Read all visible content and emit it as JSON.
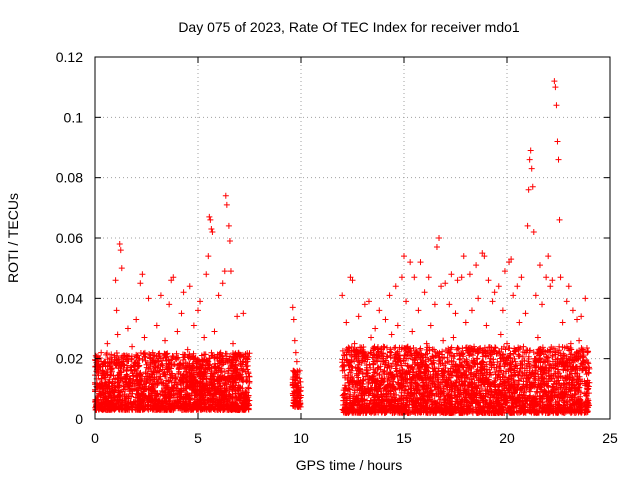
{
  "chart_data": {
    "type": "scatter",
    "title": "Day 075 of 2023, Rate Of TEC Index for receiver mdo1",
    "xlabel": "GPS time / hours",
    "ylabel": "ROTI / TECUs",
    "xlim": [
      0,
      25
    ],
    "ylim": [
      0,
      0.12
    ],
    "xticks": [
      0,
      5,
      10,
      15,
      20,
      25
    ],
    "xtick_labels": [
      "0",
      "5",
      "10",
      "15",
      "20",
      "25"
    ],
    "yticks": [
      0,
      0.02,
      0.04,
      0.06,
      0.08,
      0.1,
      0.12
    ],
    "ytick_labels": [
      "0",
      "0.02",
      "0.04",
      "0.06",
      "0.08",
      "0.1",
      "0.12"
    ],
    "grid": true,
    "marker": "+",
    "color": "#ff0000",
    "series": [
      {
        "name": "ROTI",
        "points": [
          [
            0.0,
            0.012
          ],
          [
            0.1,
            0.018
          ],
          [
            0.2,
            0.008
          ],
          [
            0.3,
            0.022
          ],
          [
            0.4,
            0.015
          ],
          [
            0.5,
            0.01
          ],
          [
            0.6,
            0.025
          ],
          [
            0.7,
            0.013
          ],
          [
            0.8,
            0.019
          ],
          [
            0.9,
            0.009
          ],
          [
            1.0,
            0.046
          ],
          [
            1.05,
            0.036
          ],
          [
            1.1,
            0.028
          ],
          [
            1.2,
            0.058
          ],
          [
            1.25,
            0.056
          ],
          [
            1.3,
            0.05
          ],
          [
            1.4,
            0.021
          ],
          [
            1.5,
            0.014
          ],
          [
            1.6,
            0.03
          ],
          [
            1.7,
            0.011
          ],
          [
            1.8,
            0.024
          ],
          [
            1.9,
            0.016
          ],
          [
            2.0,
            0.033
          ],
          [
            2.1,
            0.012
          ],
          [
            2.2,
            0.045
          ],
          [
            2.3,
            0.048
          ],
          [
            2.4,
            0.027
          ],
          [
            2.5,
            0.018
          ],
          [
            2.6,
            0.04
          ],
          [
            2.7,
            0.013
          ],
          [
            2.8,
            0.022
          ],
          [
            2.9,
            0.009
          ],
          [
            3.0,
            0.031
          ],
          [
            3.1,
            0.019
          ],
          [
            3.2,
            0.041
          ],
          [
            3.3,
            0.015
          ],
          [
            3.4,
            0.026
          ],
          [
            3.5,
            0.011
          ],
          [
            3.6,
            0.038
          ],
          [
            3.7,
            0.046
          ],
          [
            3.8,
            0.047
          ],
          [
            3.9,
            0.02
          ],
          [
            4.0,
            0.029
          ],
          [
            4.1,
            0.013
          ],
          [
            4.2,
            0.035
          ],
          [
            4.3,
            0.042
          ],
          [
            4.4,
            0.017
          ],
          [
            4.5,
            0.023
          ],
          [
            4.6,
            0.044
          ],
          [
            4.7,
            0.012
          ],
          [
            4.8,
            0.031
          ],
          [
            4.9,
            0.019
          ],
          [
            5.0,
            0.036
          ],
          [
            5.1,
            0.039
          ],
          [
            5.2,
            0.014
          ],
          [
            5.3,
            0.027
          ],
          [
            5.4,
            0.048
          ],
          [
            5.5,
            0.054
          ],
          [
            5.55,
            0.067
          ],
          [
            5.6,
            0.066
          ],
          [
            5.65,
            0.063
          ],
          [
            5.7,
            0.062
          ],
          [
            5.8,
            0.029
          ],
          [
            5.9,
            0.016
          ],
          [
            6.0,
            0.041
          ],
          [
            6.1,
            0.022
          ],
          [
            6.2,
            0.045
          ],
          [
            6.3,
            0.049
          ],
          [
            6.35,
            0.074
          ],
          [
            6.4,
            0.071
          ],
          [
            6.5,
            0.064
          ],
          [
            6.55,
            0.059
          ],
          [
            6.6,
            0.049
          ],
          [
            6.7,
            0.025
          ],
          [
            6.8,
            0.018
          ],
          [
            6.9,
            0.034
          ],
          [
            7.0,
            0.013
          ],
          [
            7.1,
            0.021
          ],
          [
            7.2,
            0.035
          ],
          [
            7.3,
            0.009
          ],
          [
            7.4,
            0.019
          ],
          [
            7.5,
            0.014
          ],
          [
            9.6,
            0.037
          ],
          [
            9.65,
            0.033
          ],
          [
            9.7,
            0.026
          ],
          [
            9.75,
            0.022
          ],
          [
            9.8,
            0.019
          ],
          [
            9.85,
            0.012
          ],
          [
            9.9,
            0.008
          ],
          [
            9.95,
            0.006
          ],
          [
            12.0,
            0.041
          ],
          [
            12.1,
            0.018
          ],
          [
            12.2,
            0.032
          ],
          [
            12.3,
            0.012
          ],
          [
            12.4,
            0.047
          ],
          [
            12.5,
            0.046
          ],
          [
            12.6,
            0.025
          ],
          [
            12.7,
            0.015
          ],
          [
            12.8,
            0.034
          ],
          [
            12.9,
            0.011
          ],
          [
            13.0,
            0.022
          ],
          [
            13.1,
            0.038
          ],
          [
            13.2,
            0.016
          ],
          [
            13.3,
            0.039
          ],
          [
            13.4,
            0.027
          ],
          [
            13.5,
            0.013
          ],
          [
            13.6,
            0.03
          ],
          [
            13.7,
            0.019
          ],
          [
            13.8,
            0.036
          ],
          [
            13.9,
            0.012
          ],
          [
            14.0,
            0.024
          ],
          [
            14.1,
            0.033
          ],
          [
            14.2,
            0.017
          ],
          [
            14.3,
            0.041
          ],
          [
            14.4,
            0.028
          ],
          [
            14.5,
            0.014
          ],
          [
            14.6,
            0.044
          ],
          [
            14.7,
            0.031
          ],
          [
            14.8,
            0.021
          ],
          [
            14.9,
            0.047
          ],
          [
            15.0,
            0.054
          ],
          [
            15.1,
            0.039
          ],
          [
            15.2,
            0.016
          ],
          [
            15.3,
            0.052
          ],
          [
            15.4,
            0.029
          ],
          [
            15.5,
            0.047
          ],
          [
            15.6,
            0.022
          ],
          [
            15.7,
            0.036
          ],
          [
            15.8,
            0.052
          ],
          [
            15.9,
            0.018
          ],
          [
            16.0,
            0.042
          ],
          [
            16.1,
            0.025
          ],
          [
            16.2,
            0.047
          ],
          [
            16.3,
            0.031
          ],
          [
            16.4,
            0.014
          ],
          [
            16.5,
            0.038
          ],
          [
            16.6,
            0.057
          ],
          [
            16.7,
            0.06
          ],
          [
            16.8,
            0.044
          ],
          [
            16.9,
            0.026
          ],
          [
            17.0,
            0.045
          ],
          [
            17.1,
            0.019
          ],
          [
            17.2,
            0.038
          ],
          [
            17.3,
            0.048
          ],
          [
            17.4,
            0.027
          ],
          [
            17.5,
            0.035
          ],
          [
            17.6,
            0.046
          ],
          [
            17.7,
            0.021
          ],
          [
            17.8,
            0.047
          ],
          [
            17.9,
            0.054
          ],
          [
            18.0,
            0.032
          ],
          [
            18.1,
            0.018
          ],
          [
            18.2,
            0.048
          ],
          [
            18.3,
            0.036
          ],
          [
            18.4,
            0.024
          ],
          [
            18.5,
            0.051
          ],
          [
            18.6,
            0.04
          ],
          [
            18.7,
            0.015
          ],
          [
            18.8,
            0.055
          ],
          [
            18.9,
            0.054
          ],
          [
            19.0,
            0.031
          ],
          [
            19.1,
            0.046
          ],
          [
            19.2,
            0.022
          ],
          [
            19.3,
            0.039
          ],
          [
            19.4,
            0.042
          ],
          [
            19.5,
            0.017
          ],
          [
            19.6,
            0.044
          ],
          [
            19.7,
            0.028
          ],
          [
            19.8,
            0.036
          ],
          [
            19.9,
            0.049
          ],
          [
            20.0,
            0.025
          ],
          [
            20.1,
            0.052
          ],
          [
            20.2,
            0.053
          ],
          [
            20.3,
            0.041
          ],
          [
            20.4,
            0.019
          ],
          [
            20.5,
            0.044
          ],
          [
            20.6,
            0.032
          ],
          [
            20.7,
            0.047
          ],
          [
            20.8,
            0.024
          ],
          [
            20.9,
            0.035
          ],
          [
            21.0,
            0.064
          ],
          [
            21.05,
            0.076
          ],
          [
            21.1,
            0.086
          ],
          [
            21.15,
            0.089
          ],
          [
            21.2,
            0.083
          ],
          [
            21.25,
            0.077
          ],
          [
            21.3,
            0.062
          ],
          [
            21.4,
            0.041
          ],
          [
            21.5,
            0.027
          ],
          [
            21.6,
            0.051
          ],
          [
            21.7,
            0.038
          ],
          [
            21.8,
            0.019
          ],
          [
            21.9,
            0.047
          ],
          [
            22.0,
            0.054
          ],
          [
            22.1,
            0.044
          ],
          [
            22.2,
            0.046
          ],
          [
            22.3,
            0.112
          ],
          [
            22.35,
            0.11
          ],
          [
            22.4,
            0.104
          ],
          [
            22.45,
            0.092
          ],
          [
            22.5,
            0.086
          ],
          [
            22.55,
            0.066
          ],
          [
            22.6,
            0.047
          ],
          [
            22.7,
            0.032
          ],
          [
            22.8,
            0.021
          ],
          [
            22.9,
            0.039
          ],
          [
            23.0,
            0.044
          ],
          [
            23.1,
            0.025
          ],
          [
            23.2,
            0.036
          ],
          [
            23.3,
            0.015
          ],
          [
            23.4,
            0.033
          ],
          [
            23.5,
            0.026
          ],
          [
            23.6,
            0.034
          ],
          [
            23.7,
            0.018
          ],
          [
            23.8,
            0.04
          ],
          [
            23.9,
            0.022
          ],
          [
            24.0,
            0.012
          ]
        ]
      }
    ],
    "density_bands": [
      {
        "x_range": [
          0.0,
          7.5
        ],
        "y_range": [
          0.003,
          0.022
        ]
      },
      {
        "x_range": [
          9.6,
          10.0
        ],
        "y_range": [
          0.004,
          0.016
        ]
      },
      {
        "x_range": [
          12.0,
          24.0
        ],
        "y_range": [
          0.002,
          0.024
        ]
      }
    ]
  }
}
